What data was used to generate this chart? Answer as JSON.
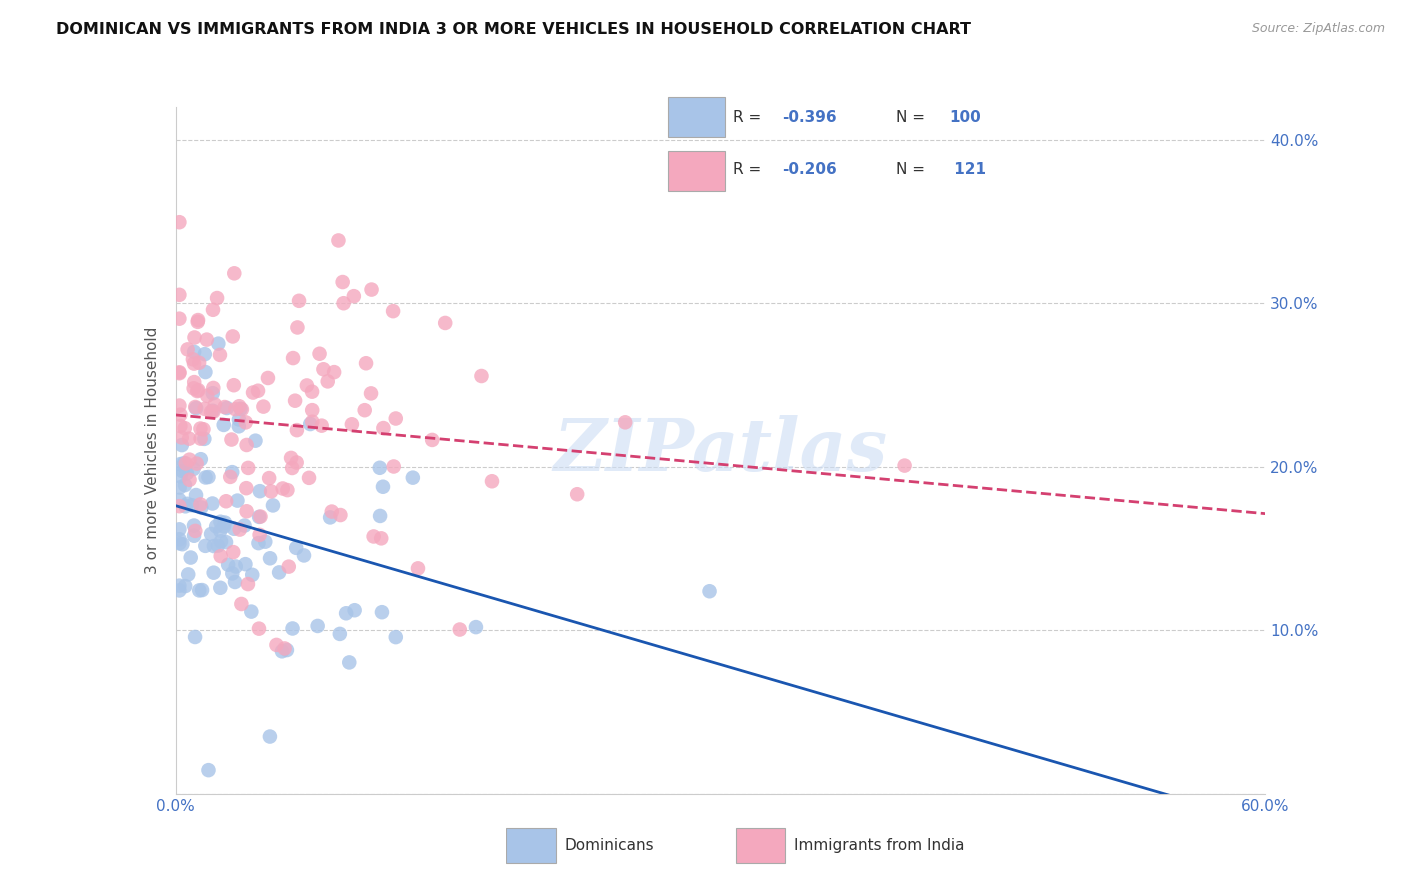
{
  "title": "DOMINICAN VS IMMIGRANTS FROM INDIA 3 OR MORE VEHICLES IN HOUSEHOLD CORRELATION CHART",
  "source": "Source: ZipAtlas.com",
  "ylabel": "3 or more Vehicles in Household",
  "xlim": [
    0.0,
    0.6
  ],
  "ylim": [
    0.0,
    0.42
  ],
  "right_yticks": [
    0.0,
    0.1,
    0.2,
    0.3,
    0.4
  ],
  "right_yticklabels": [
    "",
    "10.0%",
    "20.0%",
    "30.0%",
    "40.0%"
  ],
  "blue_R": -0.396,
  "blue_N": 100,
  "pink_R": -0.206,
  "pink_N": 121,
  "blue_color": "#a8c4e8",
  "pink_color": "#f4a8be",
  "blue_line_color": "#1a56b0",
  "pink_line_color": "#d44070",
  "legend_label_blue": "Dominicans",
  "legend_label_pink": "Immigrants from India",
  "watermark": "ZIPatlas",
  "title_color": "#111111",
  "axis_color": "#4472c4",
  "grid_color": "#cccccc",
  "legend_text_color": "#4472c4",
  "legend_rn_color": "#111111"
}
